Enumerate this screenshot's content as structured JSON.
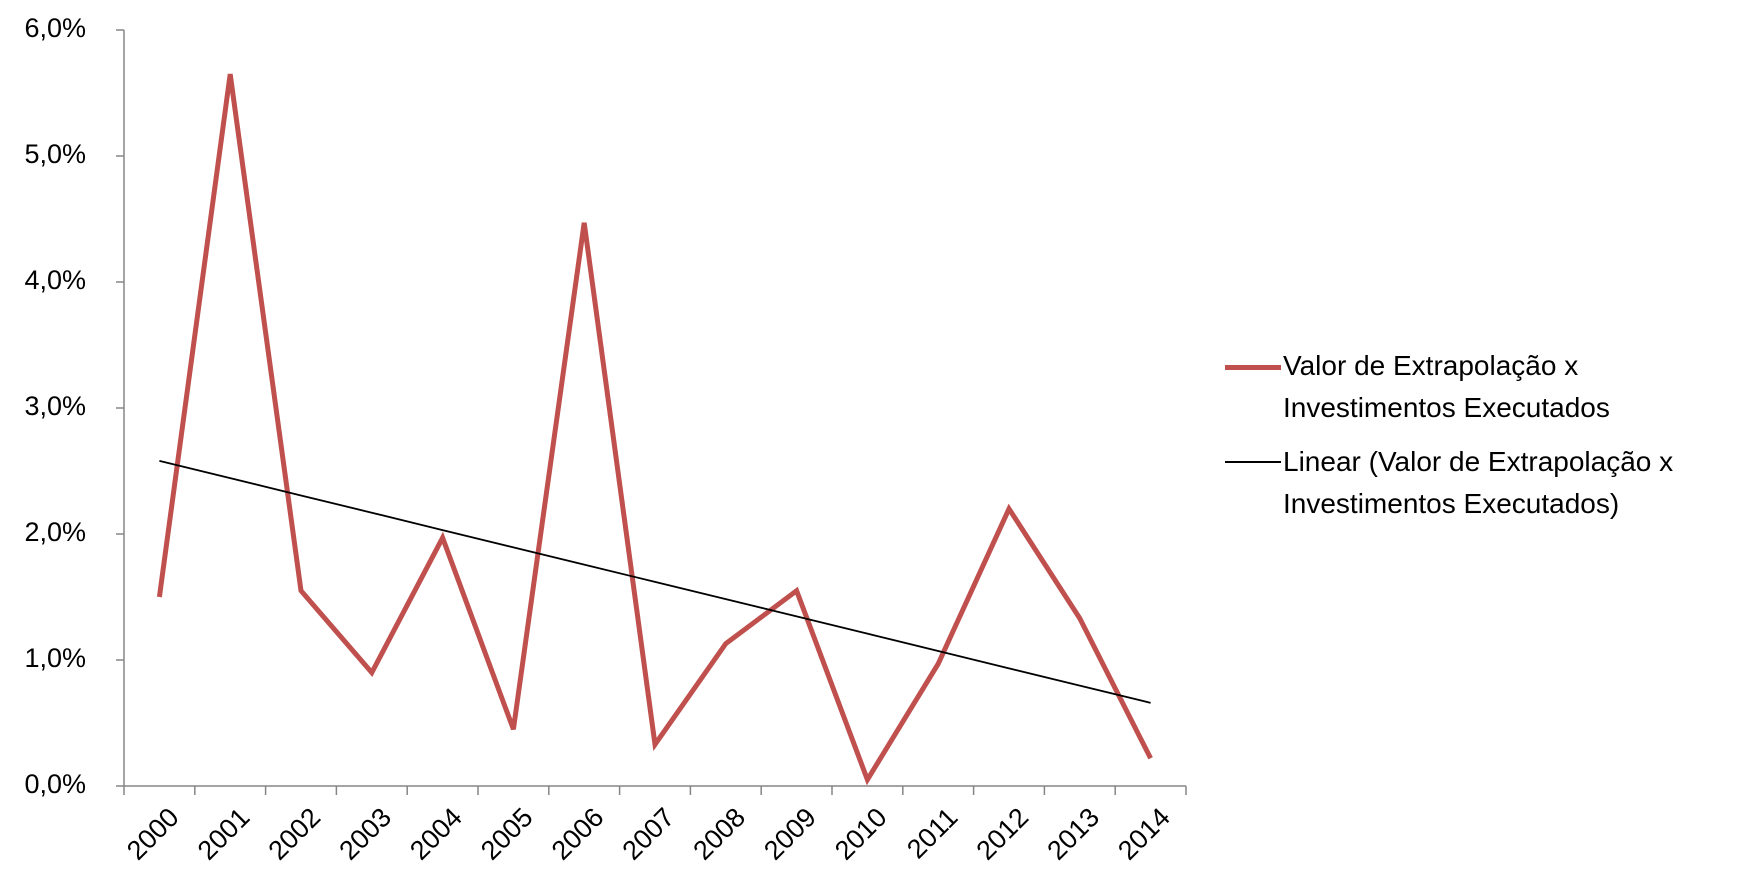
{
  "chart_data": {
    "type": "line",
    "categories": [
      "2000",
      "2001",
      "2002",
      "2003",
      "2004",
      "2005",
      "2006",
      "2007",
      "2008",
      "2009",
      "2010",
      "2011",
      "2012",
      "2013",
      "2014"
    ],
    "series": [
      {
        "name": "Valor de Extrapolação x Investimentos Executados",
        "color": "#c0504d",
        "values": [
          1.5,
          5.65,
          1.55,
          0.9,
          1.97,
          0.45,
          4.47,
          0.33,
          1.13,
          1.55,
          0.05,
          0.97,
          2.2,
          1.33,
          0.22
        ]
      },
      {
        "name": "Linear (Valor de Extrapolação x Investimentos Executados)",
        "color": "#000000",
        "values": [
          2.58,
          2.443,
          2.306,
          2.169,
          2.031,
          1.894,
          1.757,
          1.62,
          1.483,
          1.346,
          1.209,
          1.071,
          0.934,
          0.797,
          0.66
        ]
      }
    ],
    "ylim": [
      0,
      6
    ],
    "yticks": [
      {
        "value": 0,
        "label": "0,0%"
      },
      {
        "value": 1,
        "label": "1,0%"
      },
      {
        "value": 2,
        "label": "2,0%"
      },
      {
        "value": 3,
        "label": "3,0%"
      },
      {
        "value": 4,
        "label": "4,0%"
      },
      {
        "value": 5,
        "label": "5,0%"
      },
      {
        "value": 6,
        "label": "6,0%"
      }
    ],
    "grid": false,
    "legend": "right"
  }
}
